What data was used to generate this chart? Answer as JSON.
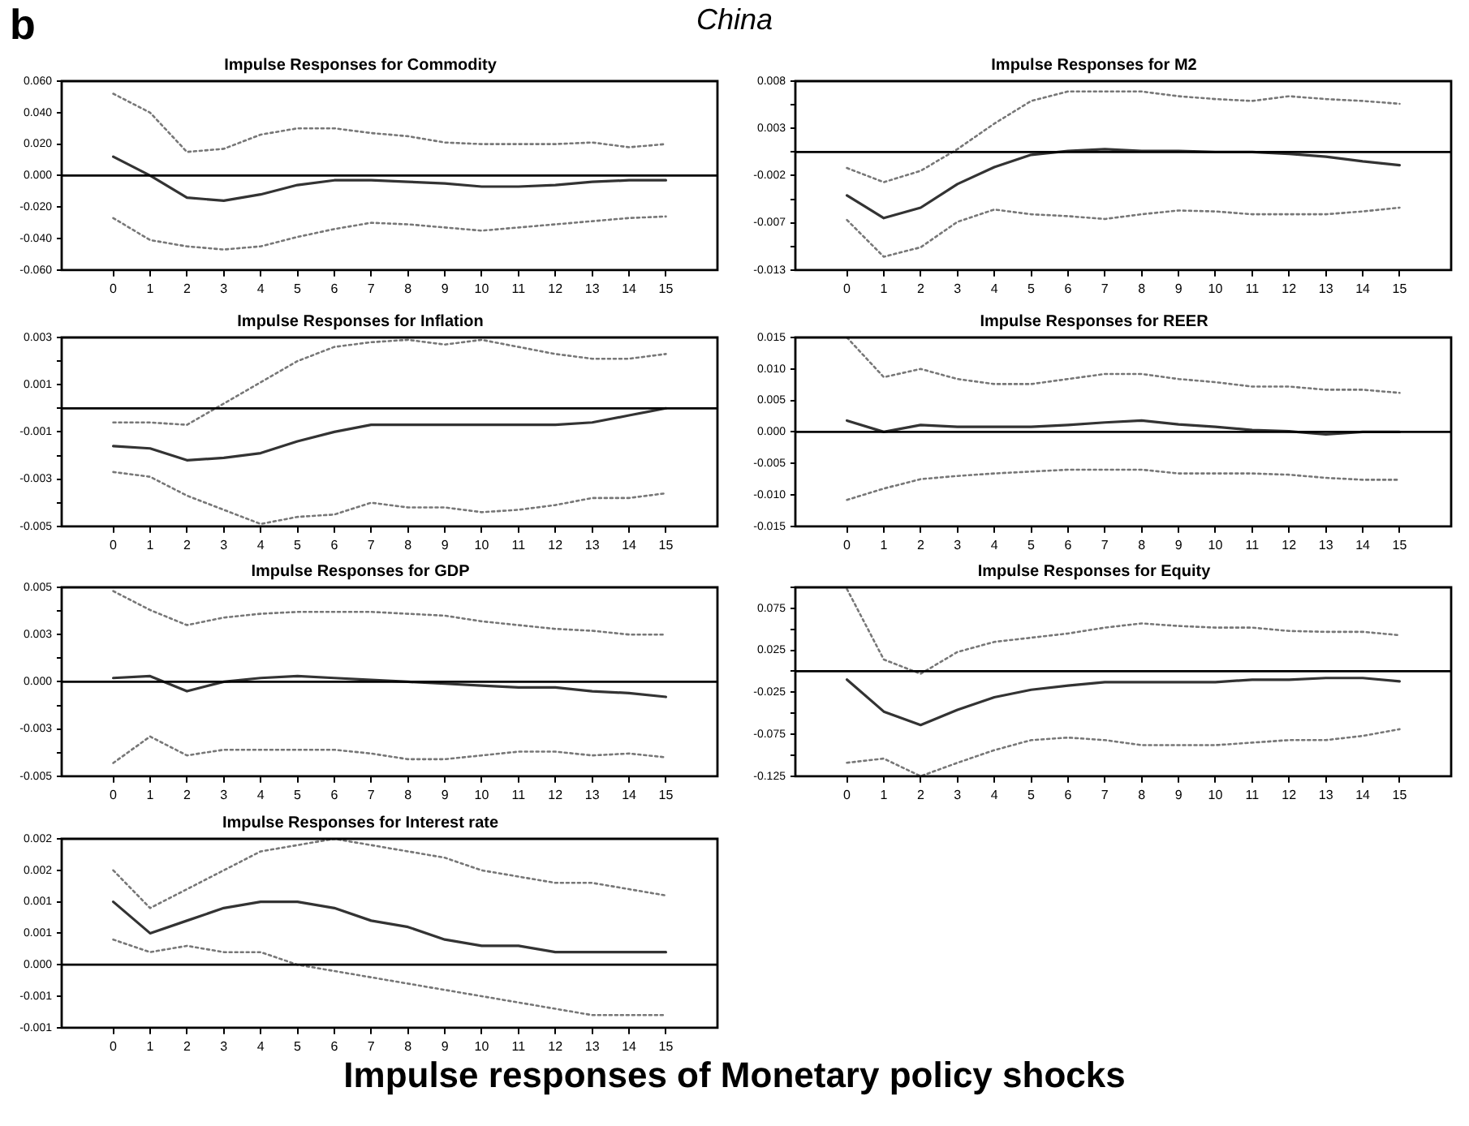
{
  "chart_data": [
    {
      "type": "line",
      "title": "Impulse Responses for Commodity",
      "annotations": [
        "b",
        "China",
        "Impulse responses of Monetary policy shocks"
      ],
      "x": [
        0,
        1,
        2,
        3,
        4,
        5,
        6,
        7,
        8,
        9,
        10,
        11,
        12,
        13,
        14,
        15
      ],
      "xlim": [
        -1.4,
        16.4
      ],
      "xticks": [
        0,
        1,
        2,
        3,
        4,
        5,
        6,
        7,
        8,
        9,
        10,
        11,
        12,
        13,
        14,
        15
      ],
      "ylim": [
        -0.06,
        0.06
      ],
      "yticks": [
        {
          "value": 0.06,
          "label": "0.060"
        },
        {
          "value": 0.04,
          "label": "0.040"
        },
        {
          "value": 0.02,
          "label": "0.020"
        },
        {
          "value": 0,
          "label": "0.000"
        },
        {
          "value": -0.02,
          "label": "-0.020"
        },
        {
          "value": -0.04,
          "label": "-0.040"
        },
        {
          "value": -0.06,
          "label": "-0.060"
        }
      ],
      "marker": "none",
      "ref_lines": [
        {
          "axis": "y",
          "value": 0,
          "color": "#000000"
        }
      ],
      "series": [
        {
          "color": "#333333",
          "line_style": "solid",
          "values": [
            0.012,
            0,
            -0.014,
            -0.016,
            -0.012,
            -0.006,
            -0.003,
            -0.003,
            -0.004,
            -0.005,
            -0.007,
            -0.007,
            -0.006,
            -0.004,
            -0.003,
            -0.003
          ]
        },
        {
          "color": "#777777",
          "line_style": "dotted",
          "values": [
            0.052,
            0.04,
            0.015,
            0.017,
            0.026,
            0.03,
            0.03,
            0.027,
            0.025,
            0.021,
            0.02,
            0.02,
            0.02,
            0.021,
            0.018,
            0.02
          ]
        },
        {
          "color": "#777777",
          "line_style": "dotted",
          "values": [
            -0.027,
            -0.041,
            -0.045,
            -0.047,
            -0.045,
            -0.039,
            -0.034,
            -0.03,
            -0.031,
            -0.033,
            -0.035,
            -0.033,
            -0.031,
            -0.029,
            -0.027,
            -0.026
          ]
        }
      ]
    },
    {
      "type": "line",
      "title": "Impulse Responses for M2",
      "x": [
        0,
        1,
        2,
        3,
        4,
        5,
        6,
        7,
        8,
        9,
        10,
        11,
        12,
        13,
        14,
        15
      ],
      "xlim": [
        -1.4,
        16.4
      ],
      "xticks": [
        0,
        1,
        2,
        3,
        4,
        5,
        6,
        7,
        8,
        9,
        10,
        11,
        12,
        13,
        14,
        15
      ],
      "ylim": [
        -0.0125,
        0.0075
      ],
      "yticks": [
        {
          "value": 0.0075,
          "label": "0.008"
        },
        {
          "value": 0.005,
          "label": null
        },
        {
          "value": 0.0025,
          "label": "0.003"
        },
        {
          "value": 0,
          "label": null
        },
        {
          "value": -0.0025,
          "label": "-0.002"
        },
        {
          "value": -0.005,
          "label": null
        },
        {
          "value": -0.0075,
          "label": "-0.007"
        },
        {
          "value": -0.01,
          "label": null
        },
        {
          "value": -0.0125,
          "label": "-0.013"
        }
      ],
      "marker": "none",
      "ref_lines": [
        {
          "axis": "y",
          "value": 0,
          "color": "#000000"
        }
      ],
      "series": [
        {
          "color": "#333333",
          "line_style": "solid",
          "values": [
            -0.0046,
            -0.007,
            -0.0059,
            -0.0034,
            -0.0016,
            -0.0003,
            0.0001,
            0.0003,
            0.0001,
            0.0001,
            0,
            0,
            -0.0002,
            -0.0005,
            -0.001,
            -0.0014
          ]
        },
        {
          "color": "#777777",
          "line_style": "dotted",
          "values": [
            -0.0017,
            -0.0032,
            -0.002,
            0.0003,
            0.003,
            0.0054,
            0.0064,
            0.0064,
            0.0064,
            0.0059,
            0.0056,
            0.0054,
            0.0059,
            0.0056,
            0.0054,
            0.0051
          ]
        },
        {
          "color": "#777777",
          "line_style": "dotted",
          "values": [
            -0.0072,
            -0.0111,
            -0.0101,
            -0.0074,
            -0.0061,
            -0.0066,
            -0.0068,
            -0.0071,
            -0.0066,
            -0.0062,
            -0.0063,
            -0.0066,
            -0.0066,
            -0.0066,
            -0.0063,
            -0.0059
          ]
        }
      ]
    },
    {
      "type": "line",
      "title": "Impulse Responses for Inflation",
      "x": [
        0,
        1,
        2,
        3,
        4,
        5,
        6,
        7,
        8,
        9,
        10,
        11,
        12,
        13,
        14,
        15
      ],
      "xlim": [
        -1.4,
        16.4
      ],
      "xticks": [
        0,
        1,
        2,
        3,
        4,
        5,
        6,
        7,
        8,
        9,
        10,
        11,
        12,
        13,
        14,
        15
      ],
      "ylim": [
        -0.005,
        0.003
      ],
      "yticks": [
        {
          "value": 0.003,
          "label": "0.003"
        },
        {
          "value": 0.002,
          "label": null
        },
        {
          "value": 0.001,
          "label": "0.001"
        },
        {
          "value": 0,
          "label": null
        },
        {
          "value": -0.001,
          "label": "-0.001"
        },
        {
          "value": -0.002,
          "label": null
        },
        {
          "value": -0.003,
          "label": "-0.003"
        },
        {
          "value": -0.004,
          "label": null
        },
        {
          "value": -0.005,
          "label": "-0.005"
        }
      ],
      "marker": "none",
      "ref_lines": [
        {
          "axis": "y",
          "value": 0,
          "color": "#000000"
        }
      ],
      "series": [
        {
          "color": "#333333",
          "line_style": "solid",
          "values": [
            -0.0016,
            -0.0017,
            -0.0022,
            -0.0021,
            -0.0019,
            -0.0014,
            -0.001,
            -0.0007,
            -0.0007,
            -0.0007,
            -0.0007,
            -0.0007,
            -0.0007,
            -0.0006,
            -0.0003,
            0
          ]
        },
        {
          "color": "#777777",
          "line_style": "dotted",
          "values": [
            -0.0006,
            -0.0006,
            -0.0007,
            0.0002,
            0.0011,
            0.002,
            0.0026,
            0.0028,
            0.0029,
            0.0027,
            0.0029,
            0.0026,
            0.0023,
            0.0021,
            0.0021,
            0.0023
          ]
        },
        {
          "color": "#777777",
          "line_style": "dotted",
          "values": [
            -0.0027,
            -0.0029,
            -0.0037,
            -0.0043,
            -0.0049,
            -0.0046,
            -0.0045,
            -0.004,
            -0.0042,
            -0.0042,
            -0.0044,
            -0.0043,
            -0.0041,
            -0.0038,
            -0.0038,
            -0.0036
          ]
        }
      ]
    },
    {
      "type": "line",
      "title": "Impulse Responses for REER",
      "x": [
        0,
        1,
        2,
        3,
        4,
        5,
        6,
        7,
        8,
        9,
        10,
        11,
        12,
        13,
        14,
        15
      ],
      "xlim": [
        -1.4,
        16.4
      ],
      "xticks": [
        0,
        1,
        2,
        3,
        4,
        5,
        6,
        7,
        8,
        9,
        10,
        11,
        12,
        13,
        14,
        15
      ],
      "ylim": [
        -0.015,
        0.015
      ],
      "yticks": [
        {
          "value": 0.015,
          "label": "0.015"
        },
        {
          "value": 0.01,
          "label": "0.010"
        },
        {
          "value": 0.005,
          "label": "0.005"
        },
        {
          "value": 0,
          "label": "0.000"
        },
        {
          "value": -0.005,
          "label": "-0.005"
        },
        {
          "value": -0.01,
          "label": "-0.010"
        },
        {
          "value": -0.015,
          "label": "-0.015"
        }
      ],
      "marker": "none",
      "ref_lines": [
        {
          "axis": "y",
          "value": 0,
          "color": "#000000"
        }
      ],
      "series": [
        {
          "color": "#333333",
          "line_style": "solid",
          "values": [
            0.0018,
            0,
            0.0011,
            0.0008,
            0.0008,
            0.0008,
            0.0011,
            0.0015,
            0.0018,
            0.0012,
            0.0008,
            0.0003,
            0.0001,
            -0.0004,
            0,
            0
          ]
        },
        {
          "color": "#777777",
          "line_style": "dotted",
          "values": [
            0.015,
            0.0087,
            0.01,
            0.0084,
            0.0076,
            0.0076,
            0.0084,
            0.0092,
            0.0092,
            0.0084,
            0.0079,
            0.0072,
            0.0072,
            0.0067,
            0.0067,
            0.0062
          ]
        },
        {
          "color": "#777777",
          "line_style": "dotted",
          "values": [
            -0.0108,
            -0.009,
            -0.0075,
            -0.007,
            -0.0066,
            -0.0063,
            -0.006,
            -0.006,
            -0.006,
            -0.0066,
            -0.0066,
            -0.0066,
            -0.0068,
            -0.0073,
            -0.0076,
            -0.0076
          ]
        }
      ]
    },
    {
      "type": "line",
      "title": "Impulse Responses for GDP",
      "x": [
        0,
        1,
        2,
        3,
        4,
        5,
        6,
        7,
        8,
        9,
        10,
        11,
        12,
        13,
        14,
        15
      ],
      "xlim": [
        -1.4,
        16.4
      ],
      "xticks": [
        0,
        1,
        2,
        3,
        4,
        5,
        6,
        7,
        8,
        9,
        10,
        11,
        12,
        13,
        14,
        15
      ],
      "ylim": [
        -0.005,
        0.005
      ],
      "yticks": [
        {
          "value": 0.005,
          "label": "0.005"
        },
        {
          "value": 0.00375,
          "label": null
        },
        {
          "value": 0.0025,
          "label": "0.003"
        },
        {
          "value": 0.00125,
          "label": null
        },
        {
          "value": 0,
          "label": "0.000"
        },
        {
          "value": -0.00125,
          "label": null
        },
        {
          "value": -0.0025,
          "label": "-0.003"
        },
        {
          "value": -0.00375,
          "label": null
        },
        {
          "value": -0.005,
          "label": "-0.005"
        }
      ],
      "marker": "none",
      "ref_lines": [
        {
          "axis": "y",
          "value": 0,
          "color": "#000000"
        }
      ],
      "series": [
        {
          "color": "#333333",
          "line_style": "solid",
          "values": [
            0.0002,
            0.0003,
            -0.0005,
            0,
            0.0002,
            0.0003,
            0.0002,
            0.0001,
            0,
            -0.0001,
            -0.0002,
            -0.0003,
            -0.0003,
            -0.0005,
            -0.0006,
            -0.0008
          ]
        },
        {
          "color": "#777777",
          "line_style": "dotted",
          "values": [
            0.0048,
            0.0038,
            0.003,
            0.0034,
            0.0036,
            0.0037,
            0.0037,
            0.0037,
            0.0036,
            0.0035,
            0.0032,
            0.003,
            0.0028,
            0.0027,
            0.0025,
            0.0025
          ]
        },
        {
          "color": "#777777",
          "line_style": "dotted",
          "values": [
            -0.0043,
            -0.0029,
            -0.0039,
            -0.0036,
            -0.0036,
            -0.0036,
            -0.0036,
            -0.0038,
            -0.0041,
            -0.0041,
            -0.0039,
            -0.0037,
            -0.0037,
            -0.0039,
            -0.0038,
            -0.004
          ]
        }
      ]
    },
    {
      "type": "line",
      "title": "Impulse Responses for Equity",
      "x": [
        0,
        1,
        2,
        3,
        4,
        5,
        6,
        7,
        8,
        9,
        10,
        11,
        12,
        13,
        14,
        15
      ],
      "xlim": [
        -1.4,
        16.4
      ],
      "xticks": [
        0,
        1,
        2,
        3,
        4,
        5,
        6,
        7,
        8,
        9,
        10,
        11,
        12,
        13,
        14,
        15
      ],
      "ylim": [
        -0.125,
        0.1
      ],
      "yticks": [
        {
          "value": 0.1,
          "label": null
        },
        {
          "value": 0.075,
          "label": "0.075"
        },
        {
          "value": 0.05,
          "label": null
        },
        {
          "value": 0.025,
          "label": "0.025"
        },
        {
          "value": 0,
          "label": null
        },
        {
          "value": -0.025,
          "label": "-0.025"
        },
        {
          "value": -0.05,
          "label": null
        },
        {
          "value": -0.075,
          "label": "-0.075"
        },
        {
          "value": -0.1,
          "label": null
        },
        {
          "value": -0.125,
          "label": "-0.125"
        }
      ],
      "marker": "none",
      "ref_lines": [
        {
          "axis": "y",
          "value": 0,
          "color": "#000000"
        }
      ],
      "series": [
        {
          "color": "#333333",
          "line_style": "solid",
          "values": [
            -0.01,
            -0.048,
            -0.064,
            -0.046,
            -0.031,
            -0.022,
            -0.017,
            -0.013,
            -0.013,
            -0.013,
            -0.013,
            -0.01,
            -0.01,
            -0.008,
            -0.008,
            -0.012
          ]
        },
        {
          "color": "#777777",
          "line_style": "dotted",
          "values": [
            0.098,
            0.014,
            -0.003,
            0.023,
            0.035,
            0.04,
            0.045,
            0.052,
            0.057,
            0.054,
            0.052,
            0.052,
            0.048,
            0.047,
            0.047,
            0.043
          ]
        },
        {
          "color": "#777777",
          "line_style": "dotted",
          "values": [
            -0.109,
            -0.104,
            -0.125,
            -0.109,
            -0.094,
            -0.082,
            -0.079,
            -0.082,
            -0.088,
            -0.088,
            -0.088,
            -0.085,
            -0.082,
            -0.082,
            -0.077,
            -0.069
          ]
        }
      ]
    },
    {
      "type": "line",
      "title": "Impulse Responses for Interest rate",
      "x": [
        0,
        1,
        2,
        3,
        4,
        5,
        6,
        7,
        8,
        9,
        10,
        11,
        12,
        13,
        14,
        15
      ],
      "xlim": [
        -1.4,
        16.4
      ],
      "xticks": [
        0,
        1,
        2,
        3,
        4,
        5,
        6,
        7,
        8,
        9,
        10,
        11,
        12,
        13,
        14,
        15
      ],
      "ylim": [
        -0.001,
        0.002
      ],
      "yticks": [
        {
          "value": 0.002,
          "label": "0.002"
        },
        {
          "value": 0.0015,
          "label": "0.002"
        },
        {
          "value": 0.001,
          "label": "0.001"
        },
        {
          "value": 0.0005,
          "label": "0.001"
        },
        {
          "value": 0,
          "label": "0.000"
        },
        {
          "value": -0.0005,
          "label": "-0.001"
        },
        {
          "value": -0.001,
          "label": "-0.001"
        }
      ],
      "marker": "none",
      "ref_lines": [
        {
          "axis": "y",
          "value": 0,
          "color": "#000000"
        }
      ],
      "series": [
        {
          "color": "#333333",
          "line_style": "solid",
          "values": [
            0.001,
            0.0005,
            0.0007,
            0.0009,
            0.001,
            0.001,
            0.0009,
            0.0007,
            0.0006,
            0.0004,
            0.0003,
            0.0003,
            0.0002,
            0.0002,
            0.0002,
            0.0002
          ]
        },
        {
          "color": "#777777",
          "line_style": "dotted",
          "values": [
            0.0015,
            0.0009,
            0.0012,
            0.0015,
            0.0018,
            0.0019,
            0.002,
            0.0019,
            0.0018,
            0.0017,
            0.0015,
            0.0014,
            0.0013,
            0.0013,
            0.0012,
            0.0011
          ]
        },
        {
          "color": "#777777",
          "line_style": "dotted",
          "values": [
            0.0004,
            0.0002,
            0.0003,
            0.0002,
            0.0002,
            0,
            -0.0001,
            -0.0002,
            -0.0003,
            -0.0004,
            -0.0005,
            -0.0006,
            -0.0007,
            -0.0008,
            -0.0008,
            -0.0008
          ]
        }
      ]
    }
  ]
}
